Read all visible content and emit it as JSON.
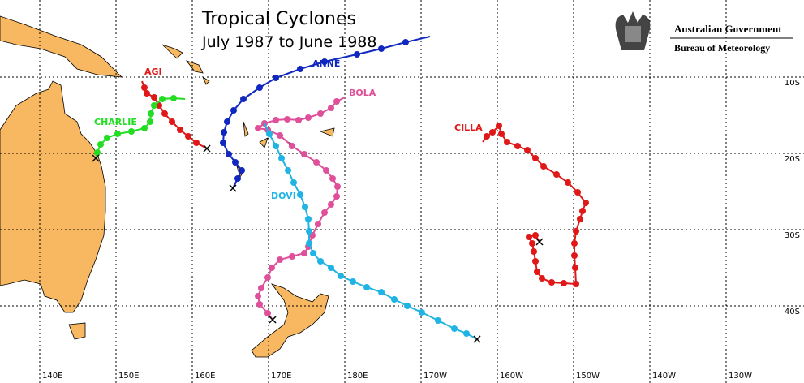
{
  "header": {
    "title": "Tropical Cyclones",
    "subtitle": "July 1987 to June 1988",
    "agency": "Australian Government",
    "bureau": "Bureau of Meteorology"
  },
  "storms": [
    {
      "name": "ANNE"
    },
    {
      "name": "BOLA"
    },
    {
      "name": "AGI"
    },
    {
      "name": "CHARLIE"
    },
    {
      "name": "CILLA"
    },
    {
      "name": "DOVI"
    }
  ],
  "longitude_labels": [
    "140E",
    "150E",
    "160E",
    "170E",
    "180E",
    "170W",
    "160W",
    "150W",
    "140W",
    "130W"
  ],
  "latitude_labels": [
    "10S",
    "20S",
    "30S",
    "40S"
  ]
}
